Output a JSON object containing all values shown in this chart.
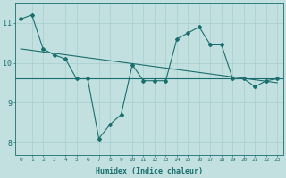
{
  "x": [
    0,
    1,
    2,
    3,
    4,
    5,
    6,
    7,
    8,
    9,
    10,
    11,
    12,
    13,
    14,
    15,
    16,
    17,
    18,
    19,
    20,
    21,
    22,
    23
  ],
  "zigzag": [
    11.1,
    11.2,
    10.35,
    10.2,
    10.1,
    9.6,
    9.6,
    8.1,
    8.45,
    8.7,
    9.95,
    9.55,
    9.55,
    9.55,
    10.6,
    10.75,
    10.9,
    10.45,
    10.45,
    9.6,
    9.6,
    9.4,
    9.55,
    9.6
  ],
  "flat_line_y": 9.6,
  "trend_line_x": [
    0,
    23
  ],
  "trend_line_y": [
    10.35,
    9.5
  ],
  "bg_color": "#c2e0e0",
  "line_color": "#1a6e6e",
  "grid_color": "#a8cccc",
  "xlabel": "Humidex (Indice chaleur)",
  "ylabel_ticks": [
    8,
    9,
    10,
    11
  ],
  "xlim": [
    -0.5,
    23.5
  ],
  "ylim": [
    7.7,
    11.5
  ]
}
